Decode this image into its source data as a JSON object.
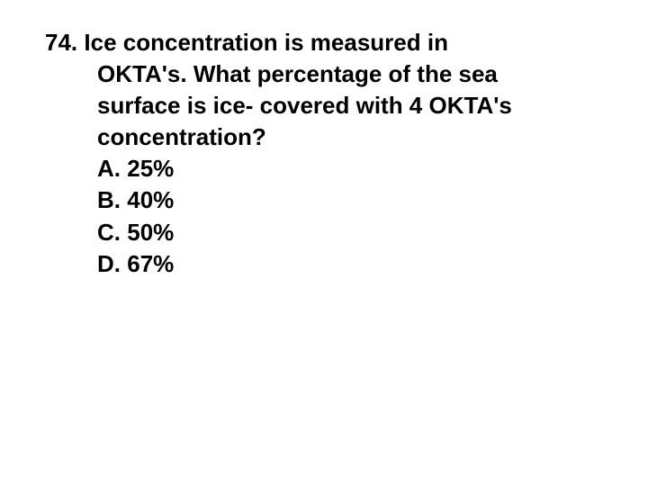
{
  "question": {
    "number": "74.",
    "line1": "Ice concentration is measured in",
    "line2": "OKTA's.  What percentage of the sea",
    "line3": "surface is ice- covered with 4 OKTA's",
    "line4": "concentration?",
    "options": [
      {
        "label": "A.",
        "text": "25%"
      },
      {
        "label": "B.",
        "text": "40%"
      },
      {
        "label": "C.",
        "text": " 50%"
      },
      {
        "label": "D.",
        "text": " 67%"
      }
    ],
    "fontsize": 26,
    "font_weight": "bold",
    "text_color": "#000000",
    "background_color": "#ffffff"
  }
}
